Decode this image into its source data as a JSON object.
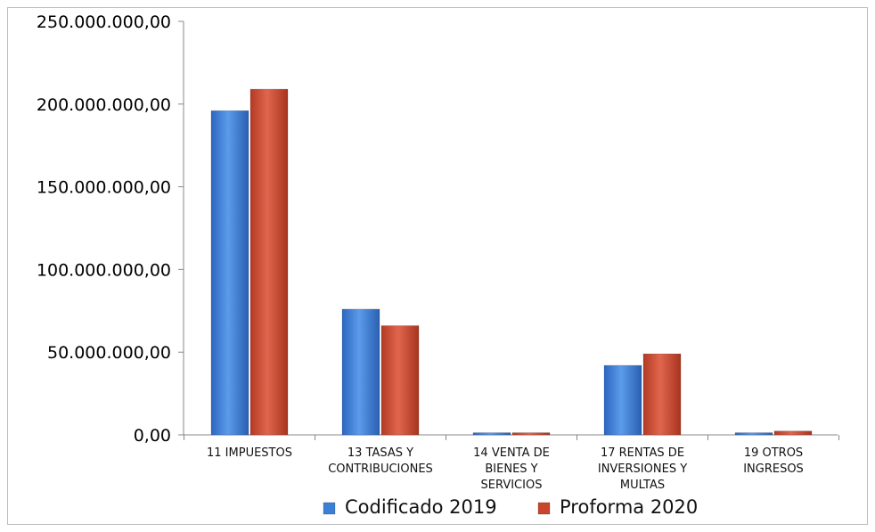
{
  "chart_data": {
    "type": "bar",
    "categories": [
      [
        "11 IMPUESTOS"
      ],
      [
        "13 TASAS Y",
        "CONTRIBUCIONES"
      ],
      [
        "14 VENTA DE",
        "BIENES Y",
        "SERVICIOS"
      ],
      [
        "17 RENTAS DE",
        "INVERSIONES Y",
        "MULTAS"
      ],
      [
        "19 OTROS",
        "INGRESOS"
      ]
    ],
    "series": [
      {
        "name": "Codificado 2019",
        "color": "#3b7fd6",
        "values": [
          196000000,
          76000000,
          1300000,
          42000000,
          1300000
        ]
      },
      {
        "name": "Proforma 2020",
        "color": "#c9452c",
        "values": [
          209000000,
          66000000,
          1300000,
          49000000,
          2300000
        ]
      }
    ],
    "yticks": [
      "0,00",
      "50.000.000,00",
      "100.000.000,00",
      "150.000.000,00",
      "200.000.000,00",
      "250.000.000,00"
    ],
    "ylim": [
      0,
      250000000
    ],
    "grid": false,
    "legend_position": "bottom"
  }
}
